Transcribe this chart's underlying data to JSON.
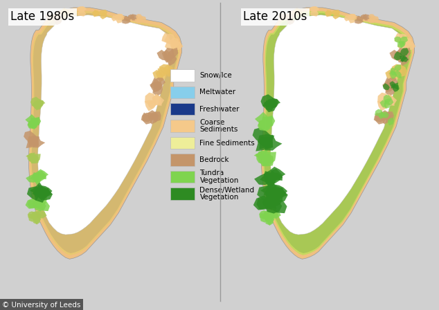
{
  "title_left": "Late 1980s",
  "title_right": "Late 2010s",
  "background_color": "#d0d0d0",
  "panel_bg": "#d0d0d0",
  "border_color": "#888888",
  "legend_items": [
    {
      "label": "Snow/Ice",
      "color": "#FFFFFF"
    },
    {
      "label": "Meltwater",
      "color": "#87CEEB"
    },
    {
      "label": "Freshwater",
      "color": "#1a3a8a"
    },
    {
      "label": "Coarse\nSediments",
      "color": "#F5C98A"
    },
    {
      "label": "Fine Sediments",
      "color": "#EEEE99"
    },
    {
      "label": "Bedrock",
      "color": "#C4956A"
    },
    {
      "label": "Tundra\nVegetation",
      "color": "#7FD44F"
    },
    {
      "label": "Dense/Wetland\nVegetation",
      "color": "#2E8B22"
    }
  ],
  "credit": "© University of Leeds",
  "title_fontsize": 12,
  "legend_fontsize": 7.5,
  "credit_fontsize": 7.5
}
